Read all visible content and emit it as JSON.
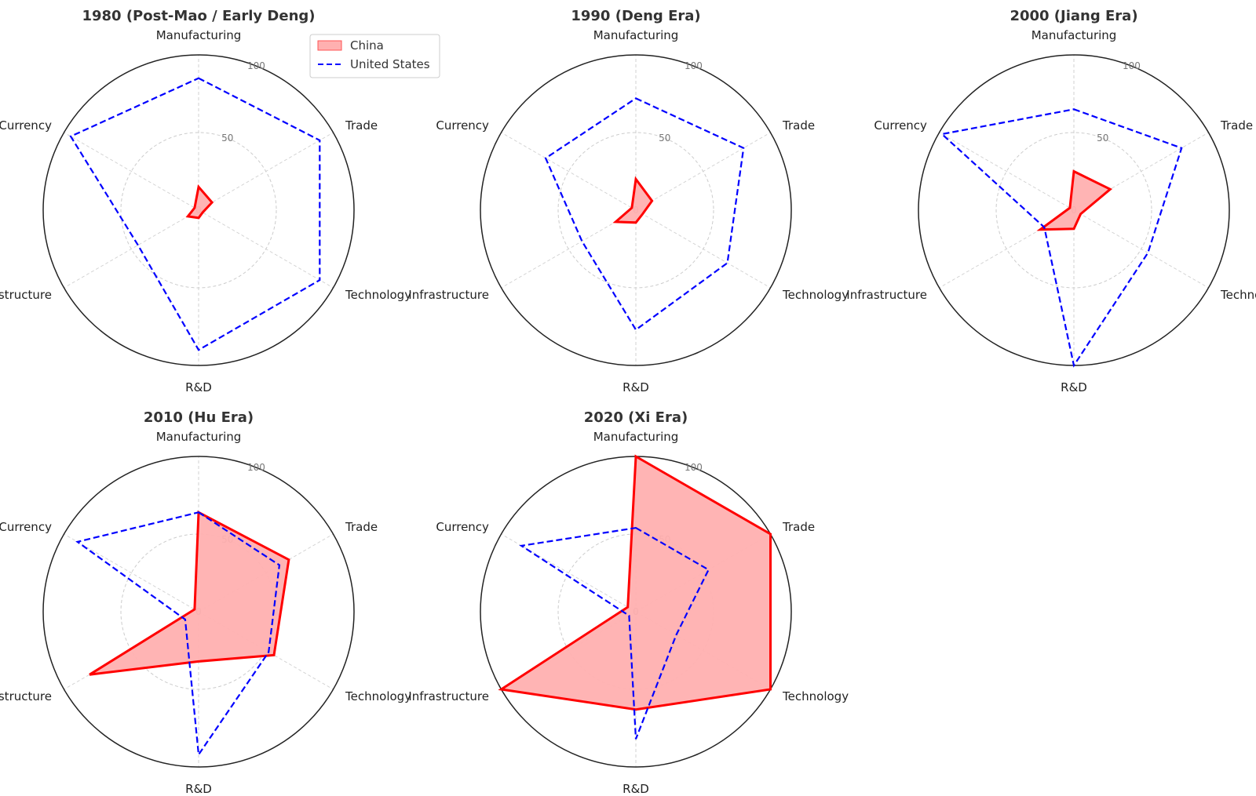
{
  "chart_data": [
    {
      "type": "radar",
      "title": "1980 (Post-Mao / Early Deng)",
      "axes": [
        "Manufacturing",
        "Trade",
        "Technology",
        "R&D",
        "Infrastructure",
        "Currency"
      ],
      "rlim": [
        0,
        100
      ],
      "rticks": [
        0,
        50,
        100
      ],
      "series": [
        {
          "name": "China",
          "values": [
            15,
            10,
            3,
            5,
            8,
            3
          ]
        },
        {
          "name": "United States",
          "values": [
            85,
            90,
            90,
            90,
            45,
            95
          ]
        }
      ]
    },
    {
      "type": "radar",
      "title": "1990 (Deng Era)",
      "axes": [
        "Manufacturing",
        "Trade",
        "Technology",
        "R&D",
        "Infrastructure",
        "Currency"
      ],
      "rlim": [
        0,
        100
      ],
      "rticks": [
        0,
        50,
        100
      ],
      "series": [
        {
          "name": "China",
          "values": [
            20,
            12,
            5,
            8,
            15,
            3
          ]
        },
        {
          "name": "United States",
          "values": [
            72,
            80,
            68,
            77,
            40,
            67
          ]
        }
      ]
    },
    {
      "type": "radar",
      "title": "2000 (Jiang Era)",
      "axes": [
        "Manufacturing",
        "Trade",
        "Technology",
        "R&D",
        "Infrastructure",
        "Currency"
      ],
      "rlim": [
        0,
        100
      ],
      "rticks": [
        0,
        50,
        100
      ],
      "series": [
        {
          "name": "China",
          "values": [
            25,
            27,
            5,
            12,
            25,
            3
          ]
        },
        {
          "name": "United States",
          "values": [
            65,
            80,
            55,
            100,
            22,
            98
          ]
        }
      ]
    },
    {
      "type": "radar",
      "title": "2010 (Hu Era)",
      "axes": [
        "Manufacturing",
        "Trade",
        "Technology",
        "R&D",
        "Infrastructure",
        "Currency"
      ],
      "rlim": [
        0,
        100
      ],
      "rticks": [
        0,
        50,
        100
      ],
      "series": [
        {
          "name": "China",
          "values": [
            64,
            67,
            56,
            32,
            81,
            3
          ]
        },
        {
          "name": "United States",
          "values": [
            64,
            60,
            52,
            92,
            10,
            90
          ]
        }
      ]
    },
    {
      "type": "radar",
      "title": "2020 (Xi Era)",
      "axes": [
        "Manufacturing",
        "Trade",
        "Technology",
        "R&D",
        "Infrastructure",
        "Currency"
      ],
      "rlim": [
        0,
        100
      ],
      "rticks": [
        0,
        50,
        100
      ],
      "series": [
        {
          "name": "China",
          "values": [
            100,
            100,
            100,
            63,
            100,
            6
          ]
        },
        {
          "name": "United States",
          "values": [
            54,
            54,
            30,
            82,
            5,
            85
          ]
        }
      ]
    }
  ],
  "legend": {
    "placement": "top-right of first panel",
    "items": [
      {
        "name": "China",
        "style": "filled"
      },
      {
        "name": "United States",
        "style": "dashed"
      }
    ]
  },
  "colors": {
    "china_line": "#ff0000",
    "china_fill": "#ffb0b0",
    "us_line": "#0000ff",
    "grid": "#cccccc",
    "outer_circle": "#222222",
    "spoke": "#d0d0d0"
  }
}
